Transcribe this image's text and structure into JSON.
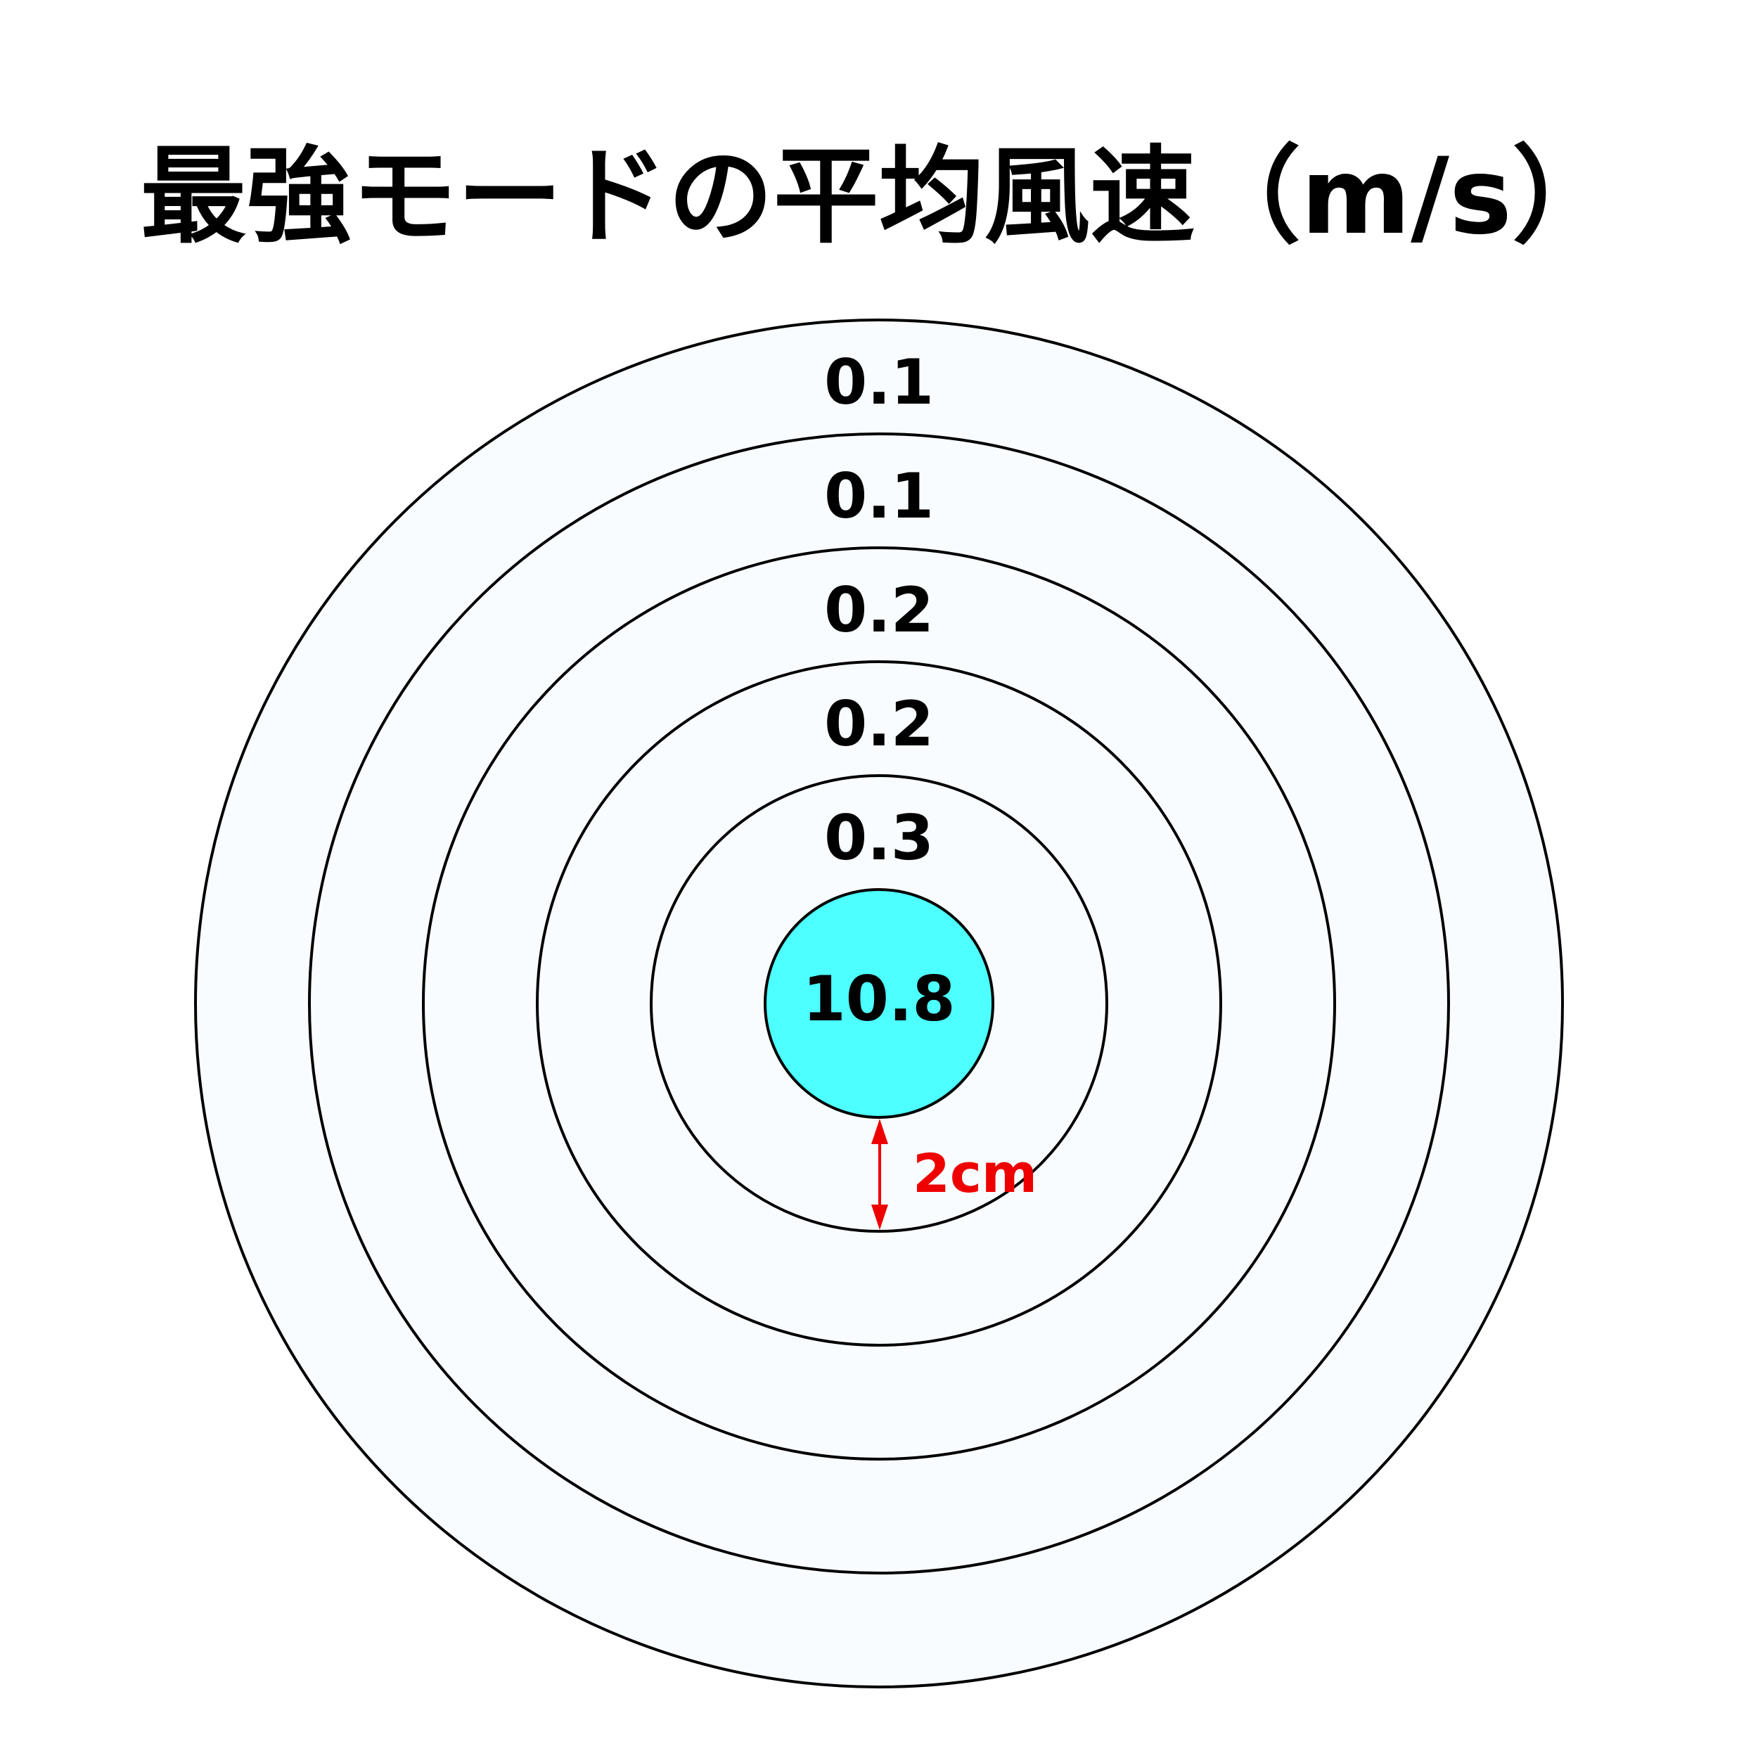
{
  "title": "最強モードの平均風速（m/s）",
  "rings": [
    {
      "value": 10.8,
      "color": "#4dffff"
    },
    {
      "value": 0.3,
      "color": "#f8fcfe"
    },
    {
      "value": 0.2,
      "color": "#f8fcfe"
    },
    {
      "value": 0.2,
      "color": "#f8fcfe"
    },
    {
      "value": 0.1,
      "color": "#f8fcfe"
    },
    {
      "value": 0.1,
      "color": "#f8fcfe"
    }
  ],
  "annotation": "2cm"
}
